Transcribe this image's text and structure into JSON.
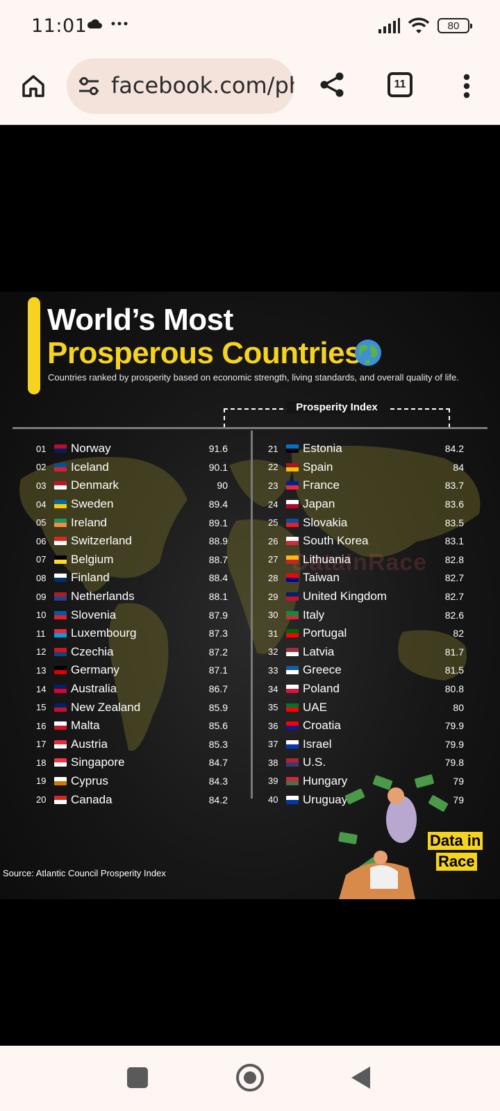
{
  "status_bar": {
    "time": "11:01",
    "battery": "80"
  },
  "browser": {
    "url": "facebook.com/ph",
    "tab_count": "11"
  },
  "infographic": {
    "title_line1": "World’s Most",
    "title_line2": "Prosperous Countries",
    "subtitle": "Countries ranked by prosperity based on economic strength, living standards, and overall quality of life.",
    "index_label": "Prosperity Index",
    "source": "Source: Atlantic Council Prosperity Index",
    "watermark": "DataInRace",
    "logo_line1": "Data in",
    "logo_line2": "Race",
    "left_column": [
      {
        "rank": "01",
        "name": "Norway",
        "score": "91.6"
      },
      {
        "rank": "02",
        "name": "Iceland",
        "score": "90.1"
      },
      {
        "rank": "03",
        "name": "Denmark",
        "score": "90"
      },
      {
        "rank": "04",
        "name": "Sweden",
        "score": "89.4"
      },
      {
        "rank": "05",
        "name": "Ireland",
        "score": "89.1"
      },
      {
        "rank": "06",
        "name": "Switzerland",
        "score": "88.9"
      },
      {
        "rank": "07",
        "name": "Belgium",
        "score": "88.7"
      },
      {
        "rank": "08",
        "name": "Finland",
        "score": "88.4"
      },
      {
        "rank": "09",
        "name": "Netherlands",
        "score": "88.1"
      },
      {
        "rank": "10",
        "name": "Slovenia",
        "score": "87.9"
      },
      {
        "rank": "11",
        "name": "Luxembourg",
        "score": "87.3"
      },
      {
        "rank": "12",
        "name": "Czechia",
        "score": "87.2"
      },
      {
        "rank": "13",
        "name": "Germany",
        "score": "87.1"
      },
      {
        "rank": "14",
        "name": "Australia",
        "score": "86.7"
      },
      {
        "rank": "15",
        "name": "New Zealand",
        "score": "85.9"
      },
      {
        "rank": "16",
        "name": "Malta",
        "score": "85.6"
      },
      {
        "rank": "17",
        "name": "Austria",
        "score": "85.3"
      },
      {
        "rank": "18",
        "name": "Singapore",
        "score": "84.7"
      },
      {
        "rank": "19",
        "name": "Cyprus",
        "score": "84.3"
      },
      {
        "rank": "20",
        "name": "Canada",
        "score": "84.2"
      }
    ],
    "right_column": [
      {
        "rank": "21",
        "name": "Estonia",
        "score": "84.2"
      },
      {
        "rank": "22",
        "name": "Spain",
        "score": "84"
      },
      {
        "rank": "23",
        "name": "France",
        "score": "83.7"
      },
      {
        "rank": "24",
        "name": "Japan",
        "score": "83.6"
      },
      {
        "rank": "25",
        "name": "Slovakia",
        "score": "83.5"
      },
      {
        "rank": "26",
        "name": "South Korea",
        "score": "83.1"
      },
      {
        "rank": "27",
        "name": "Lithuania",
        "score": "82.8"
      },
      {
        "rank": "28",
        "name": "Taiwan",
        "score": "82.7"
      },
      {
        "rank": "29",
        "name": "United Kingdom",
        "score": "82.7"
      },
      {
        "rank": "30",
        "name": "Italy",
        "score": "82.6"
      },
      {
        "rank": "31",
        "name": "Portugal",
        "score": "82"
      },
      {
        "rank": "32",
        "name": "Latvia",
        "score": "81.7"
      },
      {
        "rank": "33",
        "name": "Greece",
        "score": "81.5"
      },
      {
        "rank": "34",
        "name": "Poland",
        "score": "80.8"
      },
      {
        "rank": "35",
        "name": "UAE",
        "score": "80"
      },
      {
        "rank": "36",
        "name": "Croatia",
        "score": "79.9"
      },
      {
        "rank": "37",
        "name": "Israel",
        "score": "79.9"
      },
      {
        "rank": "38",
        "name": "U.S.",
        "score": "79.8"
      },
      {
        "rank": "39",
        "name": "Hungary",
        "score": "79"
      },
      {
        "rank": "40",
        "name": "Uruguay",
        "score": "79"
      }
    ]
  },
  "flag_colors": {
    "Norway": [
      "#ba0c2f",
      "#00205b"
    ],
    "Iceland": [
      "#02529c",
      "#dc1e35"
    ],
    "Denmark": [
      "#c8102e",
      "#ffffff"
    ],
    "Sweden": [
      "#006aa7",
      "#fecc00"
    ],
    "Ireland": [
      "#169b62",
      "#ff883e"
    ],
    "Switzerland": [
      "#da291c",
      "#ffffff"
    ],
    "Belgium": [
      "#000000",
      "#fdda24"
    ],
    "Finland": [
      "#ffffff",
      "#002f6c"
    ],
    "Netherlands": [
      "#ae1c28",
      "#21468b"
    ],
    "Slovenia": [
      "#005da4",
      "#ed1c24"
    ],
    "Luxembourg": [
      "#ed2939",
      "#00a1de"
    ],
    "Czechia": [
      "#d7141a",
      "#11457e"
    ],
    "Germany": [
      "#000000",
      "#dd0000"
    ],
    "Australia": [
      "#012169",
      "#e4002b"
    ],
    "New Zealand": [
      "#012169",
      "#c8102e"
    ],
    "Malta": [
      "#ffffff",
      "#cf142b"
    ],
    "Austria": [
      "#ed2939",
      "#ffffff"
    ],
    "Singapore": [
      "#ef3340",
      "#ffffff"
    ],
    "Cyprus": [
      "#ffffff",
      "#d57800"
    ],
    "Canada": [
      "#d52b1e",
      "#ffffff"
    ],
    "Estonia": [
      "#0072ce",
      "#000000"
    ],
    "Spain": [
      "#aa151b",
      "#f1bf00"
    ],
    "France": [
      "#002395",
      "#ed2939"
    ],
    "Japan": [
      "#ffffff",
      "#bc002d"
    ],
    "Slovakia": [
      "#0b4ea2",
      "#ee1c25"
    ],
    "South Korea": [
      "#ffffff",
      "#cd2e3a"
    ],
    "Lithuania": [
      "#fdb913",
      "#c1272d"
    ],
    "Taiwan": [
      "#fe0000",
      "#000095"
    ],
    "United Kingdom": [
      "#012169",
      "#c8102e"
    ],
    "Italy": [
      "#009246",
      "#ce2b37"
    ],
    "Portugal": [
      "#006600",
      "#ff0000"
    ],
    "Latvia": [
      "#9e3039",
      "#ffffff"
    ],
    "Greece": [
      "#0d5eaf",
      "#ffffff"
    ],
    "Poland": [
      "#ffffff",
      "#dc143c"
    ],
    "UAE": [
      "#00732f",
      "#ff0000"
    ],
    "Croatia": [
      "#ff0000",
      "#171796"
    ],
    "Israel": [
      "#ffffff",
      "#0038b8"
    ],
    "U.S.": [
      "#b22234",
      "#3c3b6e"
    ],
    "Hungary": [
      "#ce2939",
      "#477050"
    ],
    "Uruguay": [
      "#ffffff",
      "#0038a8"
    ]
  },
  "colors": {
    "accent": "#f6d31e",
    "chrome_bg": "#fdf6f3",
    "url_bg": "#f3e3db"
  }
}
